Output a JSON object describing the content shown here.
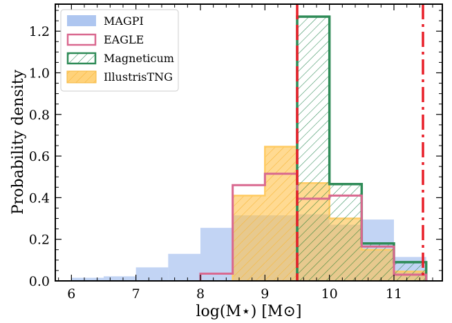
{
  "chart_data": {
    "type": "histogram",
    "xlabel": "log(M⋆) [M⊙]",
    "ylabel": "Probability density",
    "xlim": [
      5.75,
      11.75
    ],
    "ylim": [
      0,
      1.33
    ],
    "xticks": [
      "6",
      "7",
      "8",
      "9",
      "10",
      "11"
    ],
    "yticks": [
      "0.0",
      "0.2",
      "0.4",
      "0.6",
      "0.8",
      "1.0",
      "1.2"
    ],
    "legend_position": "top-left",
    "grid": false,
    "bin_edges": [
      6.0,
      6.5,
      7.0,
      7.5,
      8.0,
      8.5,
      9.0,
      9.5,
      10.0,
      10.5,
      11.0,
      11.5
    ],
    "series": [
      {
        "name": "MAGPI",
        "style": "filled",
        "color": "#aec6f0",
        "values": [
          0.015,
          0.022,
          0.065,
          0.13,
          0.255,
          0.315,
          0.315,
          0.32,
          0.27,
          0.295,
          0.115
        ]
      },
      {
        "name": "EAGLE",
        "style": "step",
        "color": "#d9688f",
        "values": [
          0,
          0,
          0,
          0,
          0.035,
          0.46,
          0.515,
          0.395,
          0.41,
          0.165,
          0.03
        ]
      },
      {
        "name": "Magneticum",
        "style": "hatched-step",
        "color": "#2e8b57",
        "values": [
          0,
          0,
          0,
          0,
          0,
          0,
          0,
          1.27,
          0.465,
          0.18,
          0.09
        ]
      },
      {
        "name": "IllustrisTNG",
        "style": "hatched-filled",
        "color": "#ffc24a",
        "values": [
          0,
          0,
          0,
          0,
          0,
          0.41,
          0.645,
          0.47,
          0.3,
          0.15,
          0.045
        ]
      }
    ],
    "reference_lines": [
      {
        "x": 9.5,
        "color": "#e8202a",
        "style": "dashed"
      },
      {
        "x": 11.45,
        "color": "#e8202a",
        "style": "dashdot"
      }
    ]
  }
}
